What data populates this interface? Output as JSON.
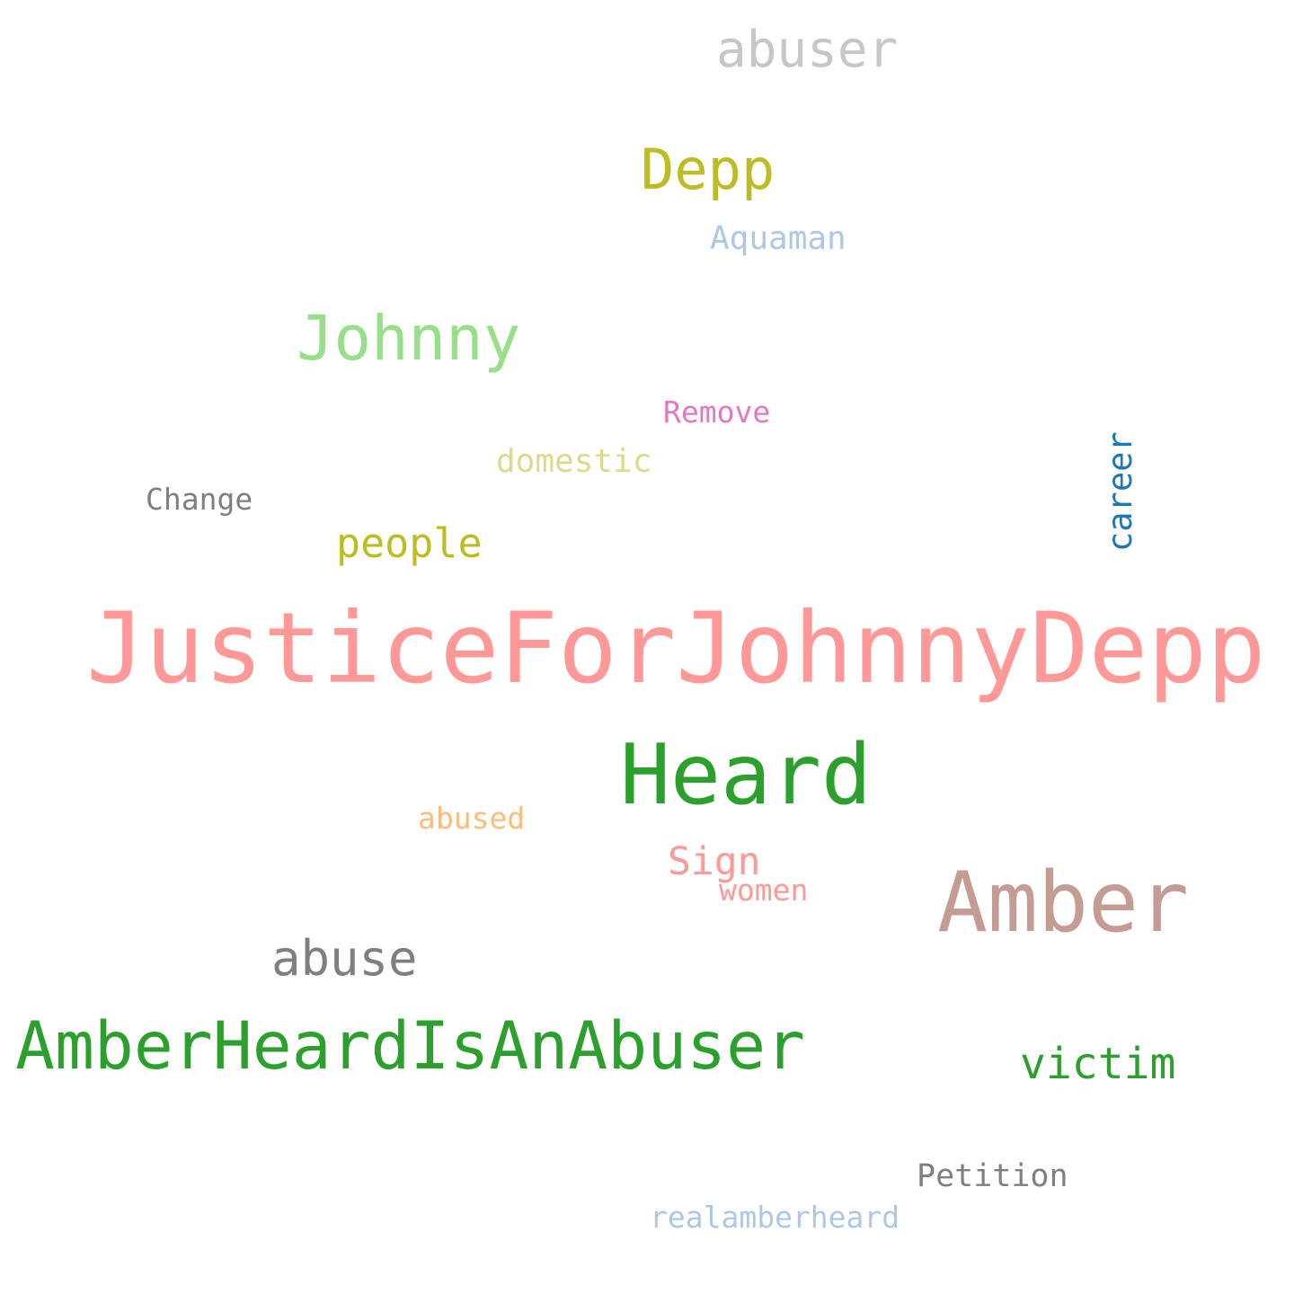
{
  "words": [
    {
      "text": "abuser",
      "color": "#c7c7c7"
    },
    {
      "text": "Depp",
      "color": "#bcbd22"
    },
    {
      "text": "Aquaman",
      "color": "#aec7e8"
    },
    {
      "text": "Johnny",
      "color": "#98df8a"
    },
    {
      "text": "Remove",
      "color": "#e377c2"
    },
    {
      "text": "domestic",
      "color": "#dbdb8d"
    },
    {
      "text": "Change",
      "color": "#7f7f7f"
    },
    {
      "text": "career",
      "color": "#1f77b4",
      "orientation": "vertical"
    },
    {
      "text": "people",
      "color": "#bcbd22"
    },
    {
      "text": "JusticeForJohnnyDepp",
      "color": "#ff9896"
    },
    {
      "text": "Heard",
      "color": "#2ca02c"
    },
    {
      "text": "abused",
      "color": "#ffbb78"
    },
    {
      "text": "Sign",
      "color": "#ff9896"
    },
    {
      "text": "women",
      "color": "#ff9896"
    },
    {
      "text": "Amber",
      "color": "#c49c94"
    },
    {
      "text": "abuse",
      "color": "#7f7f7f"
    },
    {
      "text": "AmberHeardIsAnAbuser",
      "color": "#2ca02c"
    },
    {
      "text": "victim",
      "color": "#2ca02c"
    },
    {
      "text": "Petition",
      "color": "#7f7f7f"
    },
    {
      "text": "realamberheard",
      "color": "#aec7e8"
    }
  ]
}
